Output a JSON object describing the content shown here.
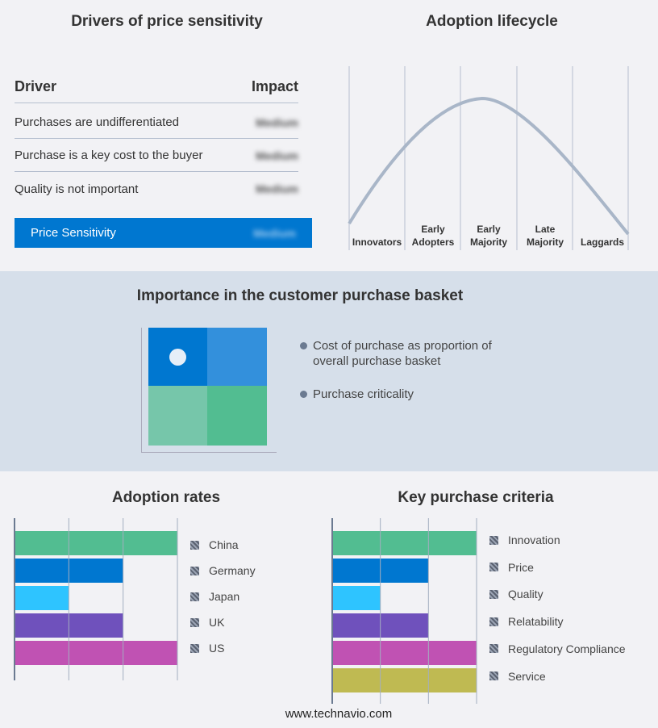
{
  "drivers": {
    "title": "Drivers of price sensitivity",
    "col_driver": "Driver",
    "col_impact": "Impact",
    "rows": [
      {
        "driver": "Purchases are undifferentiated",
        "impact": "Medium"
      },
      {
        "driver": "Purchase is a key cost to the buyer",
        "impact": "Medium"
      },
      {
        "driver": "Quality is not important",
        "impact": "Medium"
      }
    ],
    "summary": {
      "label": "Price Sensitivity",
      "impact": "Medium"
    },
    "accent": "#0077d0"
  },
  "lifecycle": {
    "title": "Adoption lifecycle",
    "stages": [
      "Innovators",
      "Early Adopters",
      "Early Majority",
      "Late Majority",
      "Laggards"
    ],
    "highlight": "Early Majority"
  },
  "basket": {
    "title": "Importance in the customer purchase basket",
    "legend": [
      "Cost of purchase as proportion of overall purchase basket",
      "Purchase criticality"
    ],
    "marker_quadrant": "top-left"
  },
  "chart_data": [
    {
      "type": "bar",
      "title": "Adoption rates",
      "categories": [
        "China",
        "Germany",
        "Japan",
        "UK",
        "US"
      ],
      "values": [
        3,
        2,
        1,
        2,
        3
      ],
      "colors": [
        "#52bd91",
        "#0077d0",
        "#2ec4ff",
        "#6f51bc",
        "#c052b3"
      ],
      "xlim": [
        0,
        3
      ],
      "grid": true,
      "legend": "right"
    },
    {
      "type": "bar",
      "title": "Key purchase criteria",
      "categories": [
        "Innovation",
        "Price",
        "Quality",
        "Relatability",
        "Regulatory Compliance",
        "Service"
      ],
      "values": [
        3,
        2,
        1,
        2,
        3,
        3
      ],
      "colors": [
        "#52bd91",
        "#0077d0",
        "#2ec4ff",
        "#6f51bc",
        "#c052b3",
        "#bfba52"
      ],
      "xlim": [
        0,
        3
      ],
      "grid": true,
      "legend": "right"
    }
  ],
  "footer": "www.technavio.com"
}
